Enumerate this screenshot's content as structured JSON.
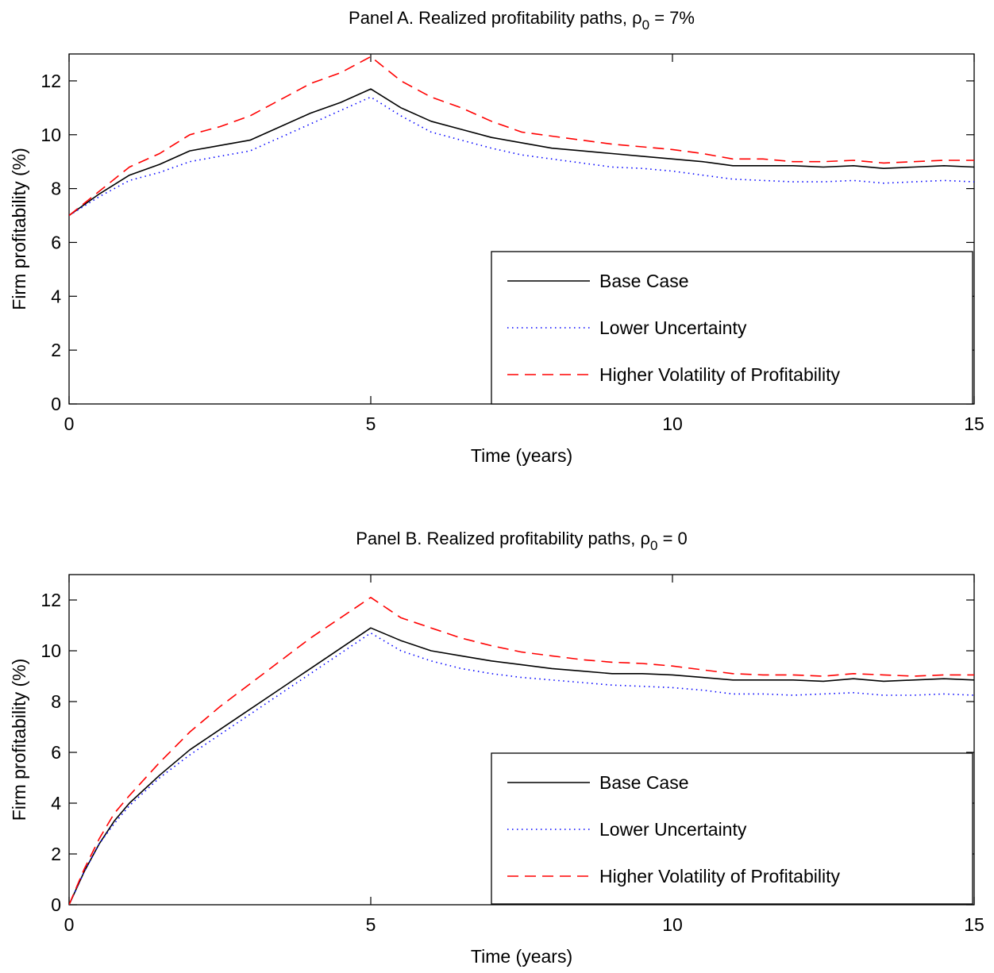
{
  "chart_data": [
    {
      "type": "line",
      "title": "Panel A.   Realized profitability paths,",
      "title_symbol": "ρ",
      "title_subscript": "0",
      "title_suffix": " = 7%",
      "xlabel": "Time (years)",
      "ylabel": "Firm profitability (%)",
      "xlim": [
        0,
        15
      ],
      "ylim": [
        0,
        13
      ],
      "xticks": [
        0,
        5,
        10,
        15
      ],
      "yticks": [
        0,
        2,
        4,
        6,
        8,
        10,
        12
      ],
      "grid": false,
      "legend_position": "lower-right",
      "series": [
        {
          "name": "Base Case",
          "color": "#000000",
          "style": "solid",
          "x": [
            0,
            0.5,
            1,
            1.5,
            2,
            2.5,
            3,
            3.5,
            4,
            4.5,
            5,
            5.5,
            6,
            6.5,
            7,
            7.5,
            8,
            8.5,
            9,
            9.5,
            10,
            10.5,
            11,
            11.5,
            12,
            12.5,
            13,
            13.5,
            14,
            14.5,
            15
          ],
          "y": [
            7.0,
            7.8,
            8.5,
            8.9,
            9.4,
            9.6,
            9.8,
            10.3,
            10.8,
            11.2,
            11.7,
            11.0,
            10.5,
            10.2,
            9.9,
            9.7,
            9.5,
            9.4,
            9.3,
            9.2,
            9.1,
            9.0,
            8.85,
            8.85,
            8.85,
            8.8,
            8.85,
            8.75,
            8.8,
            8.85,
            8.8
          ]
        },
        {
          "name": "Lower Uncertainty",
          "color": "#0000ff",
          "style": "dotted",
          "x": [
            0,
            0.5,
            1,
            1.5,
            2,
            2.5,
            3,
            3.5,
            4,
            4.5,
            5,
            5.5,
            6,
            6.5,
            7,
            7.5,
            8,
            8.5,
            9,
            9.5,
            10,
            10.5,
            11,
            11.5,
            12,
            12.5,
            13,
            13.5,
            14,
            14.5,
            15
          ],
          "y": [
            7.0,
            7.7,
            8.3,
            8.6,
            9.0,
            9.2,
            9.4,
            9.9,
            10.4,
            10.9,
            11.4,
            10.7,
            10.1,
            9.8,
            9.5,
            9.25,
            9.1,
            8.95,
            8.8,
            8.75,
            8.65,
            8.5,
            8.35,
            8.3,
            8.25,
            8.25,
            8.3,
            8.2,
            8.25,
            8.3,
            8.25
          ]
        },
        {
          "name": "Higher Volatility of Profitability",
          "color": "#ff0000",
          "style": "dashed",
          "x": [
            0,
            0.5,
            1,
            1.5,
            2,
            2.5,
            3,
            3.5,
            4,
            4.5,
            5,
            5.5,
            6,
            6.5,
            7,
            7.5,
            8,
            8.5,
            9,
            9.5,
            10,
            10.5,
            11,
            11.5,
            12,
            12.5,
            13,
            13.5,
            14,
            14.5,
            15
          ],
          "y": [
            7.0,
            7.9,
            8.8,
            9.3,
            10.0,
            10.3,
            10.7,
            11.3,
            11.9,
            12.3,
            12.9,
            12.0,
            11.4,
            11.0,
            10.5,
            10.1,
            9.95,
            9.8,
            9.65,
            9.55,
            9.45,
            9.3,
            9.1,
            9.1,
            9.0,
            9.0,
            9.05,
            8.95,
            9.0,
            9.05,
            9.05
          ]
        }
      ]
    },
    {
      "type": "line",
      "title": "Panel B.   Realized profitability paths,",
      "title_symbol": "ρ",
      "title_subscript": "0",
      "title_suffix": " = 0",
      "xlabel": "Time (years)",
      "ylabel": "Firm profitability (%)",
      "xlim": [
        0,
        15
      ],
      "ylim": [
        0,
        13
      ],
      "xticks": [
        0,
        5,
        10,
        15
      ],
      "yticks": [
        0,
        2,
        4,
        6,
        8,
        10,
        12
      ],
      "grid": false,
      "legend_position": "lower-right",
      "series": [
        {
          "name": "Base Case",
          "color": "#000000",
          "style": "solid",
          "x": [
            0,
            0.25,
            0.5,
            0.75,
            1,
            1.5,
            2,
            2.5,
            3,
            3.5,
            4,
            4.5,
            5,
            5.5,
            6,
            6.5,
            7,
            7.5,
            8,
            8.5,
            9,
            9.5,
            10,
            10.5,
            11,
            11.5,
            12,
            12.5,
            13,
            13.5,
            14,
            14.5,
            15
          ],
          "y": [
            0,
            1.3,
            2.4,
            3.3,
            4.0,
            5.1,
            6.1,
            6.9,
            7.7,
            8.5,
            9.3,
            10.1,
            10.9,
            10.4,
            10.0,
            9.8,
            9.6,
            9.45,
            9.3,
            9.2,
            9.1,
            9.1,
            9.05,
            8.95,
            8.85,
            8.85,
            8.85,
            8.8,
            8.9,
            8.8,
            8.85,
            8.9,
            8.85
          ]
        },
        {
          "name": "Lower Uncertainty",
          "color": "#0000ff",
          "style": "dotted",
          "x": [
            0,
            0.25,
            0.5,
            0.75,
            1,
            1.5,
            2,
            2.5,
            3,
            3.5,
            4,
            4.5,
            5,
            5.5,
            6,
            6.5,
            7,
            7.5,
            8,
            8.5,
            9,
            9.5,
            10,
            10.5,
            11,
            11.5,
            12,
            12.5,
            13,
            13.5,
            14,
            14.5,
            15
          ],
          "y": [
            0,
            1.3,
            2.4,
            3.2,
            3.9,
            5.0,
            5.9,
            6.7,
            7.5,
            8.3,
            9.1,
            9.9,
            10.7,
            10.0,
            9.6,
            9.3,
            9.1,
            8.95,
            8.85,
            8.75,
            8.65,
            8.6,
            8.55,
            8.45,
            8.3,
            8.3,
            8.25,
            8.3,
            8.35,
            8.25,
            8.25,
            8.3,
            8.25
          ]
        },
        {
          "name": "Higher Volatility of Profitability",
          "color": "#ff0000",
          "style": "dashed",
          "x": [
            0,
            0.25,
            0.5,
            0.75,
            1,
            1.5,
            2,
            2.5,
            3,
            3.5,
            4,
            4.5,
            5,
            5.5,
            6,
            6.5,
            7,
            7.5,
            8,
            8.5,
            9,
            9.5,
            10,
            10.5,
            11,
            11.5,
            12,
            12.5,
            13,
            13.5,
            14,
            14.5,
            15
          ],
          "y": [
            0,
            1.4,
            2.6,
            3.6,
            4.3,
            5.6,
            6.8,
            7.8,
            8.7,
            9.6,
            10.5,
            11.3,
            12.1,
            11.3,
            10.9,
            10.5,
            10.2,
            9.95,
            9.8,
            9.65,
            9.55,
            9.5,
            9.4,
            9.25,
            9.1,
            9.05,
            9.05,
            9.0,
            9.1,
            9.05,
            9.0,
            9.05,
            9.05
          ]
        }
      ]
    }
  ]
}
